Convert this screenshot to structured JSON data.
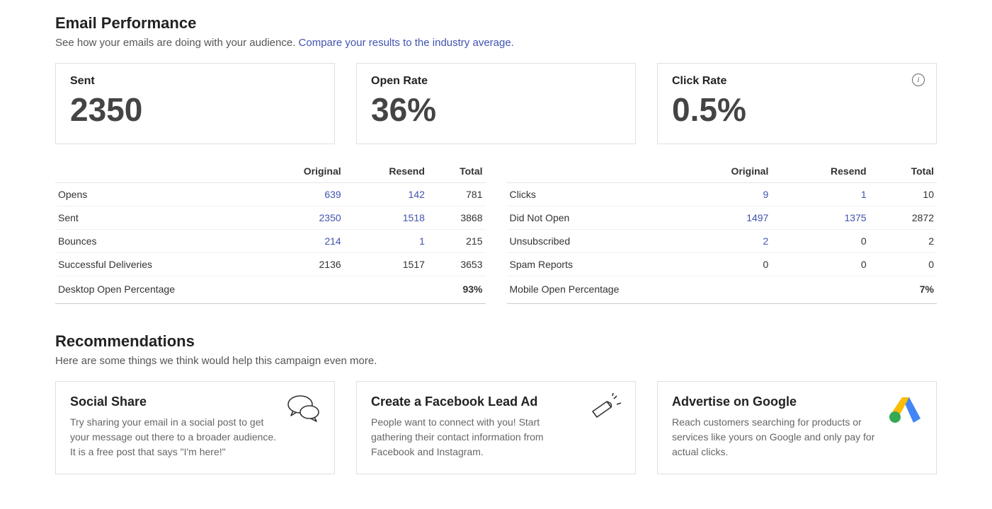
{
  "perf": {
    "title": "Email Performance",
    "subtitle": "See how your emails are doing with your audience.  ",
    "compare_link": "Compare your results to the industry average.",
    "cards": [
      {
        "label": "Sent",
        "value": "2350"
      },
      {
        "label": "Open Rate",
        "value": "36%"
      },
      {
        "label": "Click Rate",
        "value": "0.5%"
      }
    ],
    "table_headers": {
      "c1": "Original",
      "c2": "Resend",
      "c3": "Total"
    },
    "left_rows": [
      {
        "label": "Opens",
        "orig": "639",
        "resend": "142",
        "total": "781",
        "link": true
      },
      {
        "label": "Sent",
        "orig": "2350",
        "resend": "1518",
        "total": "3868",
        "link": true
      },
      {
        "label": "Bounces",
        "orig": "214",
        "resend": "1",
        "total": "215",
        "link": true
      },
      {
        "label": "Successful Deliveries",
        "orig": "2136",
        "resend": "1517",
        "total": "3653",
        "link": false
      }
    ],
    "left_pct": {
      "label": "Desktop Open Percentage",
      "value": "93%"
    },
    "right_rows": [
      {
        "label": "Clicks",
        "orig": "9",
        "resend": "1",
        "total": "10",
        "link": true
      },
      {
        "label": "Did Not Open",
        "orig": "1497",
        "resend": "1375",
        "total": "2872",
        "link": true
      },
      {
        "label": "Unsubscribed",
        "orig": "2",
        "resend": "0",
        "total": "2",
        "link_orig_only": true
      },
      {
        "label": "Spam Reports",
        "orig": "0",
        "resend": "0",
        "total": "0",
        "link": false
      }
    ],
    "right_pct": {
      "label": "Mobile Open Percentage",
      "value": "7%"
    }
  },
  "rec": {
    "title": "Recommendations",
    "subtitle": "Here are some things we think would help this campaign even more.",
    "cards": [
      {
        "title": "Social Share",
        "desc": "Try sharing your email in a social post to get your message out there to a broader audience. It is a free post that says \"I'm here!\""
      },
      {
        "title": "Create a Facebook Lead Ad",
        "desc": "People want to connect with you! Start gathering their contact information from Facebook and Instagram."
      },
      {
        "title": "Advertise on Google",
        "desc": "Reach customers searching for products or services like yours on Google and only pay for actual clicks."
      }
    ]
  },
  "colors": {
    "link": "#4153af",
    "border": "#e0e0e0",
    "text": "#333333",
    "muted": "#666666"
  }
}
